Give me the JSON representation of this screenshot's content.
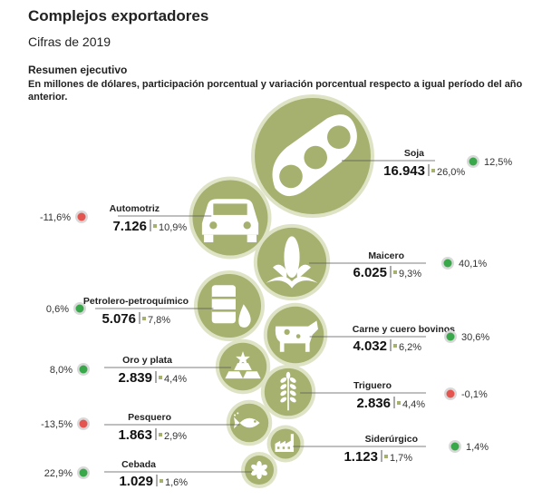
{
  "title": "Complejos exportadores",
  "subtitle": "Cifras de 2019",
  "summary": {
    "heading": "Resumen ejecutivo",
    "description": "En millones de dólares, participación porcentual y variación porcentual respecto a igual período del año anterior."
  },
  "colors": {
    "circle": "#a6b06f",
    "circle_ring": "#dfe3c5",
    "positive": "#39a84a",
    "negative": "#e5554f"
  },
  "chart_data": {
    "type": "bubble",
    "unit": "millones de dólares",
    "series": [
      {
        "key": "soja",
        "name": "Soja",
        "value": 16943,
        "value_label": "16.943",
        "share": 26.0,
        "share_label": "26,0%",
        "variation": 12.5,
        "variation_label": "12,5%",
        "icon": "soybean-pod-icon"
      },
      {
        "key": "automotriz",
        "name": "Automotriz",
        "value": 7126,
        "value_label": "7.126",
        "share": 10.9,
        "share_label": "10,9%",
        "variation": -11.6,
        "variation_label": "-11,6%",
        "icon": "car-icon"
      },
      {
        "key": "maicero",
        "name": "Maicero",
        "value": 6025,
        "value_label": "6.025",
        "share": 9.3,
        "share_label": "9,3%",
        "variation": 40.1,
        "variation_label": "40,1%",
        "icon": "corn-icon"
      },
      {
        "key": "petrolero",
        "name": "Petrolero-petroquímico",
        "value": 5076,
        "value_label": "5.076",
        "share": 7.8,
        "share_label": "7,8%",
        "variation": 0.6,
        "variation_label": "0,6%",
        "icon": "oil-barrel-icon"
      },
      {
        "key": "carne",
        "name": "Carne y cuero bovinos",
        "value": 4032,
        "value_label": "4.032",
        "share": 6.2,
        "share_label": "6,2%",
        "variation": 30.6,
        "variation_label": "30,6%",
        "icon": "cow-icon"
      },
      {
        "key": "oro",
        "name": "Oro y plata",
        "value": 2839,
        "value_label": "2.839",
        "share": 4.4,
        "share_label": "4,4%",
        "variation": 8.0,
        "variation_label": "8,0%",
        "icon": "gold-bars-icon"
      },
      {
        "key": "triguero",
        "name": "Triguero",
        "value": 2836,
        "value_label": "2.836",
        "share": 4.4,
        "share_label": "4,4%",
        "variation": -0.1,
        "variation_label": "-0,1%",
        "icon": "wheat-icon"
      },
      {
        "key": "pesquero",
        "name": "Pesquero",
        "value": 1863,
        "value_label": "1.863",
        "share": 2.9,
        "share_label": "2,9%",
        "variation": -13.5,
        "variation_label": "-13,5%",
        "icon": "fish-icon"
      },
      {
        "key": "siderurgico",
        "name": "Siderúrgico",
        "value": 1123,
        "value_label": "1.123",
        "share": 1.7,
        "share_label": "1,7%",
        "variation": 1.4,
        "variation_label": "1,4%",
        "icon": "factory-icon"
      },
      {
        "key": "cebada",
        "name": "Cebada",
        "value": 1029,
        "value_label": "1.029",
        "share": 1.6,
        "share_label": "1,6%",
        "variation": 22.9,
        "variation_label": "22,9%",
        "icon": "barley-icon"
      }
    ]
  }
}
